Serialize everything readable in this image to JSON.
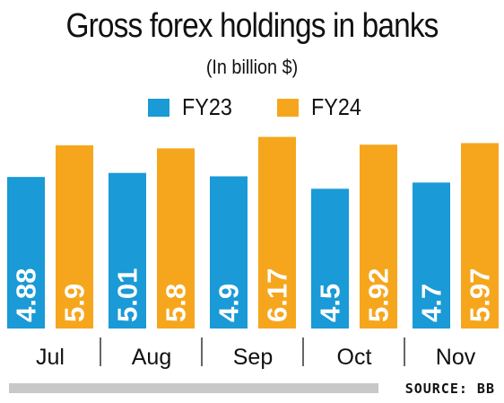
{
  "chart_data": {
    "type": "bar",
    "title": "Gross forex holdings in banks",
    "subtitle": "(In billion $)",
    "categories": [
      "Jul",
      "Aug",
      "Sep",
      "Oct",
      "Nov"
    ],
    "series": [
      {
        "name": "FY23",
        "color": "#1a9ad6",
        "values": [
          4.88,
          5.01,
          4.9,
          4.5,
          4.7
        ],
        "labels": [
          "4.88",
          "5.01",
          "4.9",
          "4.5",
          "4.7"
        ]
      },
      {
        "name": "FY24",
        "color": "#f6a61d",
        "values": [
          5.9,
          5.8,
          6.17,
          5.92,
          5.97
        ],
        "labels": [
          "5.9",
          "5.8",
          "6.17",
          "5.92",
          "5.97"
        ]
      }
    ],
    "legend_position": "top-center",
    "grid": false,
    "source": "SOURCE: BB"
  }
}
